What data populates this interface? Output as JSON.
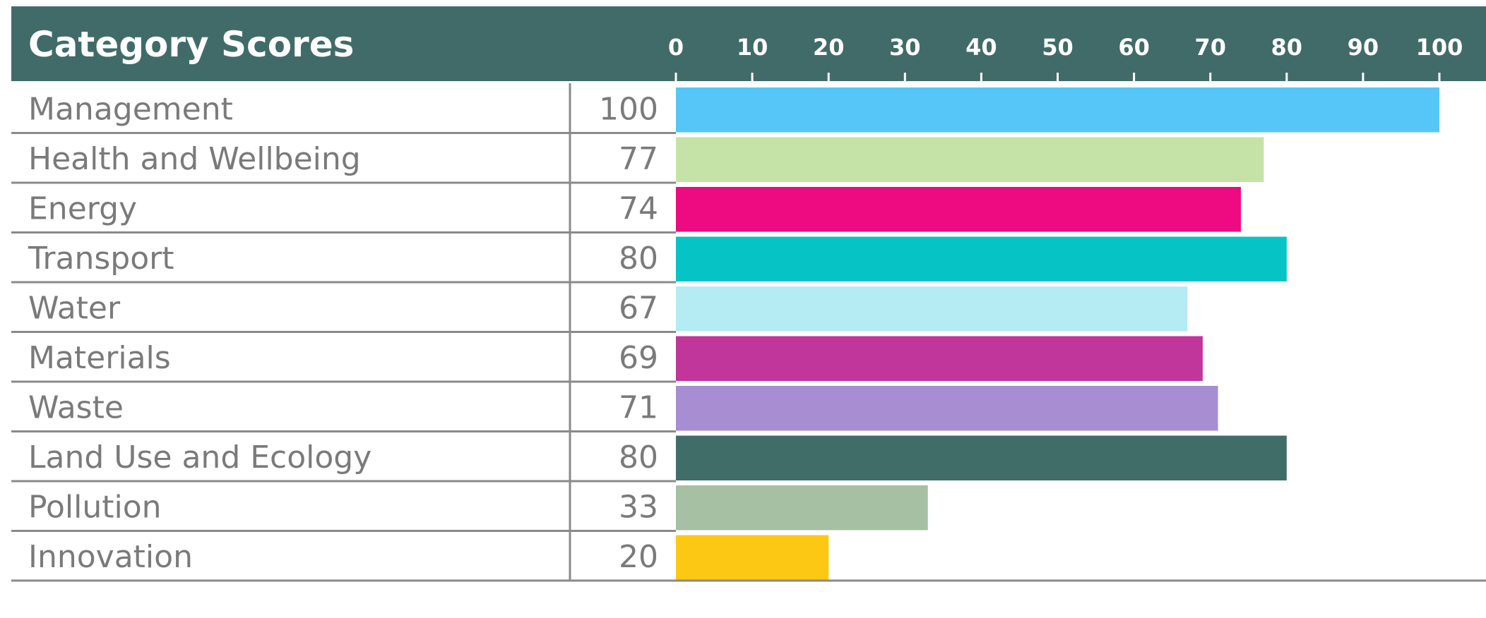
{
  "chart_data": {
    "type": "bar",
    "orientation": "horizontal",
    "title": "Category Scores",
    "categories": [
      "Management",
      "Health and Wellbeing",
      "Energy",
      "Transport",
      "Water",
      "Materials",
      "Waste",
      "Land Use and Ecology",
      "Pollution",
      "Innovation"
    ],
    "values": [
      100,
      77,
      74,
      80,
      67,
      69,
      71,
      80,
      33,
      20
    ],
    "value_labels": [
      "100",
      "77",
      "74",
      "80",
      "67",
      "69",
      "71",
      "80",
      "33",
      "20"
    ],
    "colors": [
      "#55c6f7",
      "#c5e3a6",
      "#ee0a80",
      "#06c4c6",
      "#b5ebf2",
      "#c1369b",
      "#a78ed2",
      "#416d69",
      "#a5c0a3",
      "#fdc814"
    ],
    "xlim": [
      0,
      100
    ],
    "ticks": [
      0,
      10,
      20,
      30,
      40,
      50,
      60,
      70,
      80,
      90,
      100
    ],
    "tick_labels": [
      "0",
      "10",
      "20",
      "30",
      "40",
      "50",
      "60",
      "70",
      "80",
      "90",
      "100"
    ],
    "xaxis_position": "top",
    "grid": false,
    "legend": "none"
  },
  "colors": {
    "header": "#416b68",
    "row_line": "#8a8a8a",
    "text": "#7a7a7a"
  }
}
